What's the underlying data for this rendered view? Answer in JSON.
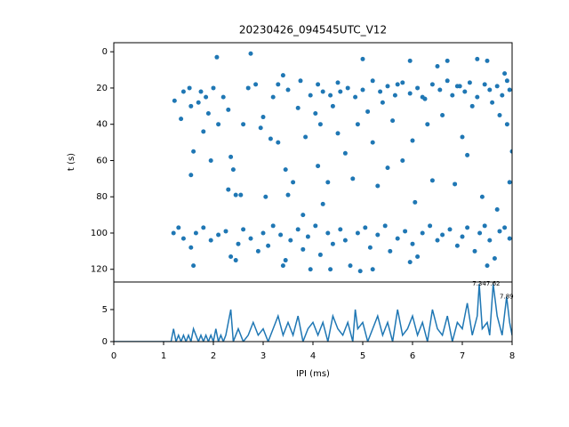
{
  "chart_data": [
    {
      "type": "scatter",
      "title": "20230426_094545UTC_V12",
      "ylabel": "t (s)",
      "color": "#1f77b4",
      "xlim": [
        0,
        8
      ],
      "ylim": [
        -5,
        127
      ],
      "y_inverted": true,
      "yticks": [
        0,
        20,
        40,
        60,
        80,
        100,
        120
      ],
      "x": [
        2.07,
        2.75,
        1.22,
        1.35,
        1.4,
        1.52,
        1.55,
        1.6,
        1.55,
        1.7,
        1.75,
        1.8,
        1.85,
        1.9,
        1.95,
        2.0,
        2.1,
        2.2,
        2.3,
        2.35,
        2.4,
        2.3,
        2.45,
        2.55,
        2.6,
        2.7,
        2.85,
        2.95,
        3.0,
        3.05,
        3.15,
        3.2,
        3.3,
        3.4,
        3.45,
        3.5,
        3.6,
        3.7,
        3.8,
        3.85,
        3.95,
        4.05,
        4.1,
        4.15,
        4.2,
        4.3,
        4.4,
        4.5,
        4.55,
        4.65,
        4.8,
        4.9,
        5.0,
        5.1,
        5.2,
        5.3,
        5.4,
        5.5,
        5.6,
        5.7,
        5.8,
        5.95,
        6.0,
        6.05,
        6.2,
        6.3,
        6.4,
        6.5,
        6.6,
        6.7,
        6.85,
        6.95,
        7.0,
        7.1,
        7.2,
        7.3,
        7.4,
        7.5,
        7.6,
        7.7,
        7.75,
        7.85,
        7.9,
        7.95,
        8.0,
        4.1,
        4.2,
        4.35,
        4.5,
        4.7,
        4.85,
        5.0,
        5.2,
        5.35,
        5.5,
        5.65,
        5.8,
        5.95,
        6.1,
        6.25,
        6.4,
        6.55,
        6.7,
        6.8,
        6.9,
        7.05,
        7.15,
        7.3,
        7.45,
        7.55,
        7.7,
        7.8,
        7.9,
        7.95,
        3.3,
        3.5,
        3.75,
        1.2,
        1.3,
        1.4,
        1.55,
        1.65,
        1.8,
        1.95,
        2.1,
        2.25,
        2.35,
        2.5,
        2.6,
        2.75,
        2.9,
        3.0,
        3.1,
        3.2,
        3.35,
        3.45,
        3.55,
        3.7,
        3.8,
        3.9,
        4.05,
        4.15,
        4.3,
        4.4,
        4.55,
        4.65,
        4.75,
        4.9,
        5.05,
        5.15,
        5.3,
        5.45,
        5.55,
        5.7,
        5.85,
        6.0,
        6.1,
        6.2,
        6.35,
        6.5,
        6.6,
        6.75,
        6.9,
        7.0,
        7.1,
        7.25,
        7.35,
        7.45,
        7.55,
        7.65,
        7.75,
        7.85,
        7.95,
        1.6,
        2.45,
        3.95,
        4.35,
        5.2,
        5.95,
        7.5,
        4.95,
        3.4
      ],
      "values": [
        3,
        1,
        27,
        37,
        22,
        20,
        30,
        55,
        68,
        28,
        22,
        44,
        25,
        34,
        60,
        20,
        40,
        25,
        32,
        58,
        65,
        76,
        79,
        79,
        40,
        20,
        18,
        42,
        36,
        80,
        48,
        25,
        50,
        13,
        65,
        79,
        72,
        31,
        90,
        47,
        24,
        34,
        63,
        40,
        84,
        72,
        30,
        45,
        22,
        56,
        70,
        40,
        4,
        33,
        50,
        74,
        28,
        64,
        38,
        18,
        60,
        5,
        49,
        83,
        25,
        40,
        71,
        8,
        35,
        5,
        73,
        19,
        47,
        57,
        30,
        4,
        80,
        5,
        28,
        87,
        35,
        12,
        40,
        72,
        55,
        18,
        22,
        24,
        17,
        20,
        25,
        21,
        16,
        22,
        19,
        24,
        17,
        23,
        20,
        26,
        18,
        21,
        16,
        24,
        19,
        22,
        17,
        25,
        18,
        21,
        19,
        24,
        16,
        21,
        18,
        21,
        16,
        100,
        97,
        103,
        108,
        100,
        97,
        104,
        101,
        99,
        113,
        106,
        98,
        103,
        110,
        100,
        107,
        96,
        101,
        115,
        104,
        98,
        109,
        102,
        96,
        112,
        100,
        106,
        98,
        104,
        118,
        100,
        97,
        108,
        101,
        96,
        110,
        103,
        99,
        106,
        113,
        100,
        96,
        104,
        101,
        98,
        107,
        102,
        97,
        110,
        100,
        96,
        104,
        114,
        99,
        97,
        103,
        118,
        115,
        120,
        120,
        120,
        116,
        118,
        121,
        118
      ]
    },
    {
      "type": "line",
      "xlabel": "IPI (ms)",
      "color": "#1f77b4",
      "xlim": [
        0,
        8
      ],
      "xticks": [
        0,
        1,
        2,
        3,
        4,
        5,
        6,
        7,
        8
      ],
      "ylim": [
        0,
        9.3
      ],
      "yticks": [
        0,
        5
      ],
      "x": [
        0,
        1.15,
        1.2,
        1.25,
        1.3,
        1.35,
        1.4,
        1.45,
        1.5,
        1.55,
        1.6,
        1.65,
        1.7,
        1.75,
        1.8,
        1.85,
        1.9,
        1.95,
        2.0,
        2.05,
        2.1,
        2.15,
        2.2,
        2.25,
        2.3,
        2.35,
        2.4,
        2.45,
        2.5,
        2.6,
        2.7,
        2.8,
        2.9,
        3.0,
        3.1,
        3.2,
        3.3,
        3.4,
        3.5,
        3.6,
        3.7,
        3.8,
        3.9,
        4.0,
        4.1,
        4.2,
        4.3,
        4.4,
        4.5,
        4.6,
        4.7,
        4.8,
        4.85,
        4.9,
        5.0,
        5.1,
        5.2,
        5.3,
        5.4,
        5.5,
        5.6,
        5.7,
        5.8,
        5.9,
        6.0,
        6.1,
        6.2,
        6.3,
        6.4,
        6.5,
        6.6,
        6.7,
        6.8,
        6.9,
        7.0,
        7.1,
        7.2,
        7.3,
        7.34,
        7.4,
        7.5,
        7.55,
        7.62,
        7.7,
        7.8,
        7.89,
        7.95,
        8.0
      ],
      "values": [
        0,
        0,
        2,
        0,
        1,
        0,
        1,
        0,
        1,
        0,
        2,
        1,
        0,
        1,
        0,
        1,
        0,
        1,
        0,
        2,
        0,
        1,
        0,
        1,
        3,
        5,
        0,
        1,
        2,
        0,
        1,
        3,
        1,
        2,
        0,
        2,
        4,
        1,
        3,
        1,
        4,
        0,
        2,
        3,
        1,
        3,
        0,
        4,
        2,
        1,
        3,
        0,
        5,
        2,
        3,
        0,
        2,
        4,
        1,
        3,
        0,
        5,
        1,
        2,
        4,
        1,
        3,
        0,
        5,
        2,
        1,
        4,
        0,
        3,
        2,
        6,
        1,
        4,
        9,
        2,
        3,
        1,
        9,
        4,
        1,
        7,
        3,
        1
      ],
      "annotations": [
        {
          "x": 7.34,
          "y": 9,
          "text": "7.34"
        },
        {
          "x": 7.62,
          "y": 9,
          "text": "7.62"
        },
        {
          "x": 7.89,
          "y": 7,
          "text": "7.89"
        }
      ]
    }
  ]
}
